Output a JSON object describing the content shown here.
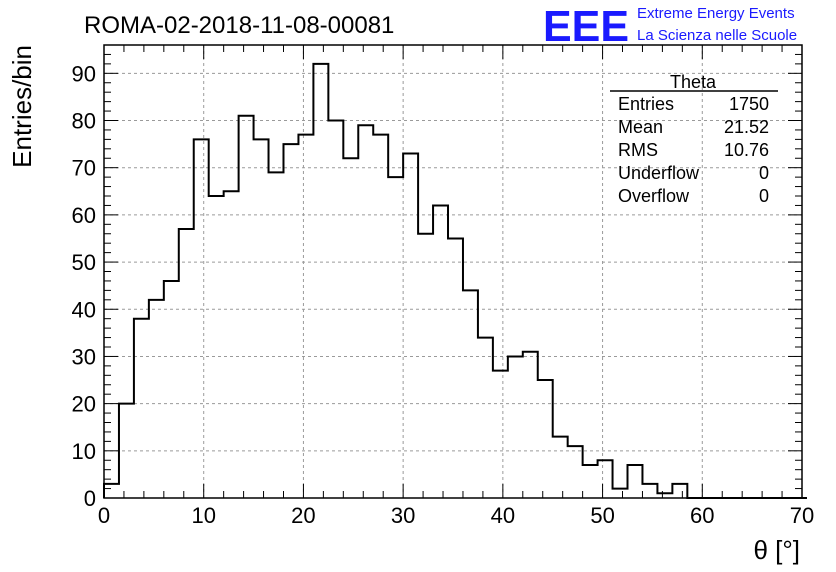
{
  "chart_data": {
    "type": "histogram",
    "title": "ROMA-02-2018-11-08-00081",
    "xlabel": "θ [°]",
    "ylabel": "Entries/bin",
    "xlim": [
      0,
      70
    ],
    "ylim": [
      0,
      96
    ],
    "x_ticks": [
      0,
      10,
      20,
      30,
      40,
      50,
      60,
      70
    ],
    "y_ticks": [
      0,
      10,
      20,
      30,
      40,
      50,
      60,
      70,
      80,
      90
    ],
    "grid": true,
    "bin_width": 1.5,
    "bin_start": 0,
    "values": [
      3,
      20,
      38,
      42,
      46,
      57,
      76,
      64,
      65,
      81,
      76,
      69,
      75,
      77,
      92,
      80,
      72,
      79,
      77,
      68,
      73,
      56,
      62,
      55,
      44,
      34,
      27,
      30,
      31,
      25,
      13,
      11,
      7,
      8,
      2,
      7,
      3,
      1,
      3,
      0,
      0,
      0,
      0,
      0,
      0,
      0,
      0
    ]
  },
  "logo": {
    "mark": "EEE",
    "line1": "Extreme Energy Events",
    "line2": "La Scienza nelle Scuole",
    "color": "#1a1aff"
  },
  "stats": {
    "name": "Theta",
    "rows": [
      {
        "label": "Entries",
        "value": "1750"
      },
      {
        "label": "Mean",
        "value": "21.52"
      },
      {
        "label": "RMS",
        "value": "10.76"
      },
      {
        "label": "Underflow",
        "value": "0"
      },
      {
        "label": "Overflow",
        "value": "0"
      }
    ]
  }
}
